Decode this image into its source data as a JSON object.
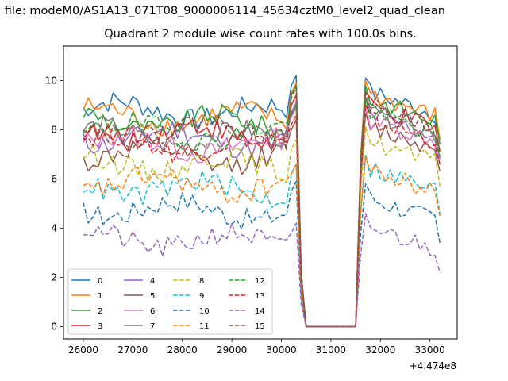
{
  "chart_data": {
    "type": "line",
    "suptitle": "n file: modeM0/AS1A13_071T08_9000006114_45634cztM0_level2_quad_clean",
    "title": "Quadrant 2 module wise count rates with 100.0s bins.",
    "xlabel": "",
    "ylabel": "",
    "x_offset_label": "+4.474e8",
    "xlim": [
      25600,
      33550
    ],
    "ylim": [
      -0.5,
      11.4
    ],
    "xticks": [
      "26000",
      "27000",
      "28000",
      "29000",
      "30000",
      "31000",
      "32000",
      "33000"
    ],
    "yticks": [
      "0",
      "2",
      "4",
      "6",
      "8",
      "10"
    ],
    "grid": false,
    "legend": {
      "placement": "lower-left",
      "columns": 4
    },
    "x_bins": {
      "start": 26000,
      "step": 100,
      "gap_from": 30500,
      "gap_to": 31500
    },
    "series": [
      {
        "name": "0",
        "color": "#1f77b4",
        "dash": "solid",
        "level": 8.85,
        "peak": 10.2,
        "after": 9.5
      },
      {
        "name": "1",
        "color": "#ff7f0e",
        "dash": "solid",
        "level": 8.6,
        "peak": 9.9,
        "after": 9.4
      },
      {
        "name": "2",
        "color": "#2ca02c",
        "dash": "solid",
        "level": 8.4,
        "peak": 9.8,
        "after": 9.2
      },
      {
        "name": "3",
        "color": "#d62728",
        "dash": "solid",
        "level": 7.95,
        "peak": 9.4,
        "after": 8.9
      },
      {
        "name": "4",
        "color": "#9467bd",
        "dash": "solid",
        "level": 7.75,
        "peak": 9.1,
        "after": 8.6
      },
      {
        "name": "5",
        "color": "#8c564b",
        "dash": "solid",
        "level": 7.0,
        "peak": 8.4,
        "after": 8.1
      },
      {
        "name": "6",
        "color": "#e377c2",
        "dash": "solid",
        "level": 7.5,
        "peak": 8.9,
        "after": 8.4
      },
      {
        "name": "7",
        "color": "#7f7f7f",
        "dash": "solid",
        "level": 7.8,
        "peak": 9.0,
        "after": 8.7
      },
      {
        "name": "8",
        "color": "#bcbd22",
        "dash": "dashed",
        "level": 6.7,
        "peak": 7.6,
        "after": 7.5
      },
      {
        "name": "9",
        "color": "#17becf",
        "dash": "dashed",
        "level": 5.7,
        "peak": 6.6,
        "after": 6.4
      },
      {
        "name": "10",
        "color": "#1f77b4",
        "dash": "dashed",
        "level": 4.85,
        "peak": 5.9,
        "after": 5.2
      },
      {
        "name": "11",
        "color": "#ff7f0e",
        "dash": "dashed",
        "level": 5.85,
        "peak": 6.6,
        "after": 6.3
      },
      {
        "name": "12",
        "color": "#2ca02c",
        "dash": "dashed",
        "level": 8.0,
        "peak": 9.0,
        "after": 8.7
      },
      {
        "name": "13",
        "color": "#d62728",
        "dash": "dashed",
        "level": 7.5,
        "peak": 8.6,
        "after": 8.4
      },
      {
        "name": "14",
        "color": "#9467bd",
        "dash": "dashed",
        "level": 3.6,
        "peak": 4.2,
        "after": 4.0
      },
      {
        "name": "15",
        "color": "#8c564b",
        "dash": "dashed",
        "level": 8.1,
        "peak": 9.7,
        "after": 9.0
      }
    ]
  }
}
